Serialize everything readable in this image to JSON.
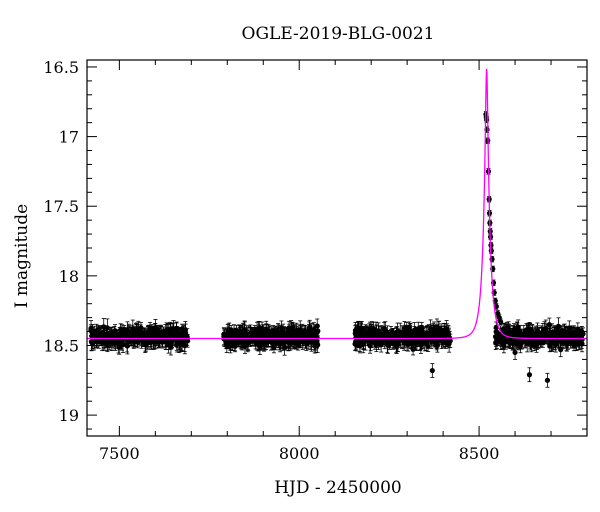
{
  "chart_data": {
    "type": "scatter",
    "title": "OGLE-2019-BLG-0021",
    "xlabel": "HJD - 2450000",
    "ylabel": "I magnitude",
    "xlim": [
      7410,
      8800
    ],
    "ylim": [
      19.15,
      16.45
    ],
    "y_inverted": true,
    "x_ticks": [
      7500,
      8000,
      8500
    ],
    "y_ticks": [
      16.5,
      17,
      17.5,
      18,
      18.5,
      19
    ],
    "y_tick_labels": [
      "16.5",
      "17",
      "17.5",
      "18",
      "18.5",
      "19"
    ],
    "x_tick_labels": [
      "7500",
      "8000",
      "8500"
    ],
    "grid": false,
    "series": [
      {
        "kind": "observations",
        "color": "#000000",
        "marker": "filled-circle-with-errorbars",
        "baseline_mag": 18.44,
        "baseline_scatter": 0.06,
        "typical_error": 0.05,
        "season_ranges": [
          [
            7420,
            7690
          ],
          [
            7790,
            8055
          ],
          [
            8155,
            8420
          ],
          [
            8545,
            8790
          ]
        ],
        "peak_points": [
          [
            8519,
            16.84
          ],
          [
            8520,
            16.86
          ],
          [
            8521,
            16.88
          ],
          [
            8522,
            16.95
          ],
          [
            8524,
            17.03
          ],
          [
            8526,
            17.25
          ],
          [
            8528,
            17.45
          ],
          [
            8529,
            17.55
          ],
          [
            8530,
            17.62
          ],
          [
            8531,
            17.68
          ],
          [
            8532,
            17.72
          ],
          [
            8533,
            17.78
          ],
          [
            8534,
            17.82
          ],
          [
            8536,
            17.88
          ],
          [
            8538,
            17.95
          ],
          [
            8540,
            18.05
          ],
          [
            8542,
            18.12
          ],
          [
            8545,
            18.18
          ],
          [
            8548,
            18.22
          ],
          [
            8552,
            18.27
          ],
          [
            8556,
            18.3
          ],
          [
            8560,
            18.33
          ]
        ],
        "outliers": [
          [
            8600,
            18.55
          ],
          [
            8640,
            18.71
          ],
          [
            8690,
            18.75
          ],
          [
            8760,
            18.42
          ],
          [
            8050,
            18.36
          ],
          [
            8370,
            18.68
          ]
        ]
      },
      {
        "kind": "model",
        "color": "#ff00ff",
        "t0": 8521,
        "u0": 0.17,
        "tE": 18,
        "baseline_mag": 18.45
      }
    ]
  }
}
